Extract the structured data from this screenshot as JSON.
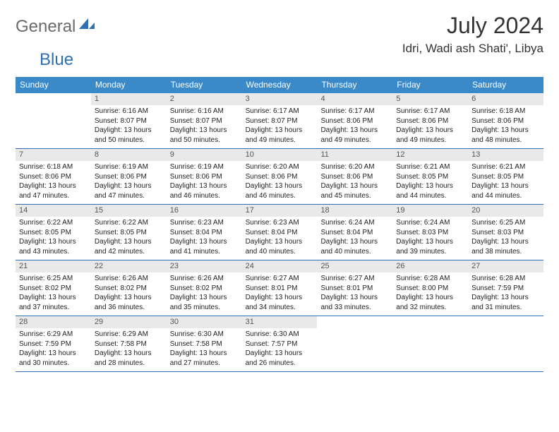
{
  "logo": {
    "text_general": "General",
    "text_blue": "Blue"
  },
  "title": "July 2024",
  "location": "Idri, Wadi ash Shati', Libya",
  "weekdays": [
    "Sunday",
    "Monday",
    "Tuesday",
    "Wednesday",
    "Thursday",
    "Friday",
    "Saturday"
  ],
  "colors": {
    "header_bg": "#3a89c9",
    "header_text": "#ffffff",
    "day_number_bg": "#e9e9e9",
    "row_border": "#2f6fb3",
    "body_text": "#222222",
    "logo_grey": "#6a6a6a",
    "logo_blue": "#2f6fb3"
  },
  "weeks": [
    [
      {
        "n": "",
        "lines": []
      },
      {
        "n": "1",
        "lines": [
          "Sunrise: 6:16 AM",
          "Sunset: 8:07 PM",
          "Daylight: 13 hours",
          "and 50 minutes."
        ]
      },
      {
        "n": "2",
        "lines": [
          "Sunrise: 6:16 AM",
          "Sunset: 8:07 PM",
          "Daylight: 13 hours",
          "and 50 minutes."
        ]
      },
      {
        "n": "3",
        "lines": [
          "Sunrise: 6:17 AM",
          "Sunset: 8:07 PM",
          "Daylight: 13 hours",
          "and 49 minutes."
        ]
      },
      {
        "n": "4",
        "lines": [
          "Sunrise: 6:17 AM",
          "Sunset: 8:06 PM",
          "Daylight: 13 hours",
          "and 49 minutes."
        ]
      },
      {
        "n": "5",
        "lines": [
          "Sunrise: 6:17 AM",
          "Sunset: 8:06 PM",
          "Daylight: 13 hours",
          "and 49 minutes."
        ]
      },
      {
        "n": "6",
        "lines": [
          "Sunrise: 6:18 AM",
          "Sunset: 8:06 PM",
          "Daylight: 13 hours",
          "and 48 minutes."
        ]
      }
    ],
    [
      {
        "n": "7",
        "lines": [
          "Sunrise: 6:18 AM",
          "Sunset: 8:06 PM",
          "Daylight: 13 hours",
          "and 47 minutes."
        ]
      },
      {
        "n": "8",
        "lines": [
          "Sunrise: 6:19 AM",
          "Sunset: 8:06 PM",
          "Daylight: 13 hours",
          "and 47 minutes."
        ]
      },
      {
        "n": "9",
        "lines": [
          "Sunrise: 6:19 AM",
          "Sunset: 8:06 PM",
          "Daylight: 13 hours",
          "and 46 minutes."
        ]
      },
      {
        "n": "10",
        "lines": [
          "Sunrise: 6:20 AM",
          "Sunset: 8:06 PM",
          "Daylight: 13 hours",
          "and 46 minutes."
        ]
      },
      {
        "n": "11",
        "lines": [
          "Sunrise: 6:20 AM",
          "Sunset: 8:06 PM",
          "Daylight: 13 hours",
          "and 45 minutes."
        ]
      },
      {
        "n": "12",
        "lines": [
          "Sunrise: 6:21 AM",
          "Sunset: 8:05 PM",
          "Daylight: 13 hours",
          "and 44 minutes."
        ]
      },
      {
        "n": "13",
        "lines": [
          "Sunrise: 6:21 AM",
          "Sunset: 8:05 PM",
          "Daylight: 13 hours",
          "and 44 minutes."
        ]
      }
    ],
    [
      {
        "n": "14",
        "lines": [
          "Sunrise: 6:22 AM",
          "Sunset: 8:05 PM",
          "Daylight: 13 hours",
          "and 43 minutes."
        ]
      },
      {
        "n": "15",
        "lines": [
          "Sunrise: 6:22 AM",
          "Sunset: 8:05 PM",
          "Daylight: 13 hours",
          "and 42 minutes."
        ]
      },
      {
        "n": "16",
        "lines": [
          "Sunrise: 6:23 AM",
          "Sunset: 8:04 PM",
          "Daylight: 13 hours",
          "and 41 minutes."
        ]
      },
      {
        "n": "17",
        "lines": [
          "Sunrise: 6:23 AM",
          "Sunset: 8:04 PM",
          "Daylight: 13 hours",
          "and 40 minutes."
        ]
      },
      {
        "n": "18",
        "lines": [
          "Sunrise: 6:24 AM",
          "Sunset: 8:04 PM",
          "Daylight: 13 hours",
          "and 40 minutes."
        ]
      },
      {
        "n": "19",
        "lines": [
          "Sunrise: 6:24 AM",
          "Sunset: 8:03 PM",
          "Daylight: 13 hours",
          "and 39 minutes."
        ]
      },
      {
        "n": "20",
        "lines": [
          "Sunrise: 6:25 AM",
          "Sunset: 8:03 PM",
          "Daylight: 13 hours",
          "and 38 minutes."
        ]
      }
    ],
    [
      {
        "n": "21",
        "lines": [
          "Sunrise: 6:25 AM",
          "Sunset: 8:02 PM",
          "Daylight: 13 hours",
          "and 37 minutes."
        ]
      },
      {
        "n": "22",
        "lines": [
          "Sunrise: 6:26 AM",
          "Sunset: 8:02 PM",
          "Daylight: 13 hours",
          "and 36 minutes."
        ]
      },
      {
        "n": "23",
        "lines": [
          "Sunrise: 6:26 AM",
          "Sunset: 8:02 PM",
          "Daylight: 13 hours",
          "and 35 minutes."
        ]
      },
      {
        "n": "24",
        "lines": [
          "Sunrise: 6:27 AM",
          "Sunset: 8:01 PM",
          "Daylight: 13 hours",
          "and 34 minutes."
        ]
      },
      {
        "n": "25",
        "lines": [
          "Sunrise: 6:27 AM",
          "Sunset: 8:01 PM",
          "Daylight: 13 hours",
          "and 33 minutes."
        ]
      },
      {
        "n": "26",
        "lines": [
          "Sunrise: 6:28 AM",
          "Sunset: 8:00 PM",
          "Daylight: 13 hours",
          "and 32 minutes."
        ]
      },
      {
        "n": "27",
        "lines": [
          "Sunrise: 6:28 AM",
          "Sunset: 7:59 PM",
          "Daylight: 13 hours",
          "and 31 minutes."
        ]
      }
    ],
    [
      {
        "n": "28",
        "lines": [
          "Sunrise: 6:29 AM",
          "Sunset: 7:59 PM",
          "Daylight: 13 hours",
          "and 30 minutes."
        ]
      },
      {
        "n": "29",
        "lines": [
          "Sunrise: 6:29 AM",
          "Sunset: 7:58 PM",
          "Daylight: 13 hours",
          "and 28 minutes."
        ]
      },
      {
        "n": "30",
        "lines": [
          "Sunrise: 6:30 AM",
          "Sunset: 7:58 PM",
          "Daylight: 13 hours",
          "and 27 minutes."
        ]
      },
      {
        "n": "31",
        "lines": [
          "Sunrise: 6:30 AM",
          "Sunset: 7:57 PM",
          "Daylight: 13 hours",
          "and 26 minutes."
        ]
      },
      {
        "n": "",
        "lines": []
      },
      {
        "n": "",
        "lines": []
      },
      {
        "n": "",
        "lines": []
      }
    ]
  ]
}
